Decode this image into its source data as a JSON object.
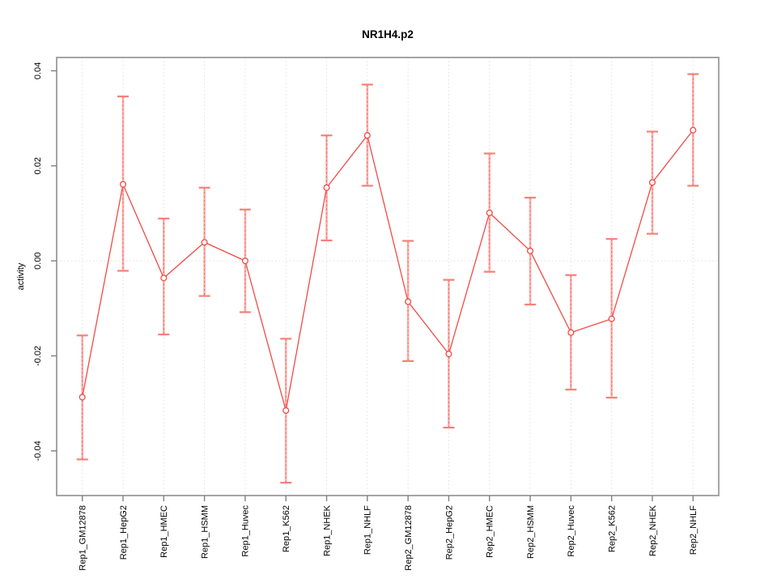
{
  "page": {
    "background": "#ffffff"
  },
  "chart_data": {
    "type": "line",
    "title": "NR1H4.p2",
    "ylabel": "activity",
    "xlabel": "",
    "marker": "open-circle",
    "line_color": "#ee4b46",
    "error_bar_color": "#fcb1ad",
    "error_cap_color": "#f87f78",
    "box_color": "#9b9b9b",
    "tick_color": "#808080",
    "grid_color": "#e0e0e0",
    "grid": "dotted vertical line at each category, dotted horizontal line at y=0",
    "legend_position": "none",
    "categories": [
      "Rep1_GM12878",
      "Rep1_HepG2",
      "Rep1_HMEC",
      "Rep1_HSMM",
      "Rep1_Huvec",
      "Rep1_K562",
      "Rep1_NHEK",
      "Rep1_NHLF",
      "Rep2_GM12878",
      "Rep2_HepG2",
      "Rep2_HMEC",
      "Rep2_HSMM",
      "Rep2_Huvec",
      "Rep2_K562",
      "Rep2_NHEK",
      "Rep2_NHLF"
    ],
    "series": [
      {
        "name": "activity",
        "values": [
          -0.0287,
          0.0161,
          -0.0036,
          0.0039,
          0.0,
          -0.0315,
          0.0154,
          0.0264,
          -0.0086,
          -0.0196,
          0.0101,
          0.0021,
          -0.0151,
          -0.0122,
          0.0165,
          0.0275
        ],
        "error_high": [
          -0.0157,
          0.0346,
          0.0089,
          0.0154,
          0.0108,
          -0.0164,
          0.0264,
          0.0371,
          0.0042,
          -0.004,
          0.0226,
          0.0133,
          -0.003,
          0.0046,
          0.0272,
          0.0393
        ],
        "error_low": [
          -0.0418,
          -0.0021,
          -0.0155,
          -0.0074,
          -0.0108,
          -0.0467,
          0.0043,
          0.0158,
          -0.0211,
          -0.0351,
          -0.0023,
          -0.0092,
          -0.0271,
          -0.0288,
          0.0057,
          0.0158
        ]
      }
    ],
    "ylim": [
      -0.0494,
      0.0428
    ],
    "ytick_values": [
      -0.04,
      -0.02,
      0.0,
      0.02,
      0.04
    ],
    "ytick_labels": [
      "-0.04",
      "-0.02",
      "0.00",
      "0.02",
      "0.04"
    ]
  }
}
